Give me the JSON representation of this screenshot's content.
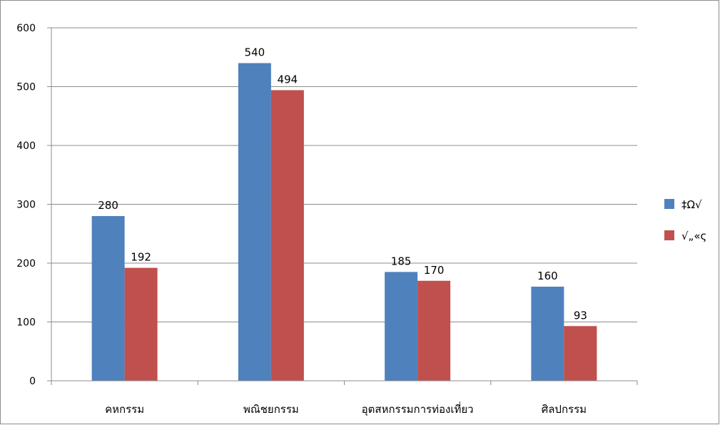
{
  "chart_data": {
    "type": "bar",
    "categories": [
      "คหกรรม",
      "พณิชยกรรม",
      "อุตสหกรรมการท่องเที่ยว",
      "ศิลปกรรม"
    ],
    "series": [
      {
        "name": "‡Ω√",
        "color": "#4f81bd",
        "values": [
          280,
          540,
          185,
          160
        ]
      },
      {
        "name": "√„«ς",
        "color": "#c0504d",
        "values": [
          192,
          494,
          170,
          93
        ]
      }
    ],
    "ylim": [
      0,
      600
    ],
    "yticks": [
      0,
      100,
      200,
      300,
      400,
      500,
      600
    ],
    "grid": true,
    "legend": "right",
    "data_labels": true
  }
}
